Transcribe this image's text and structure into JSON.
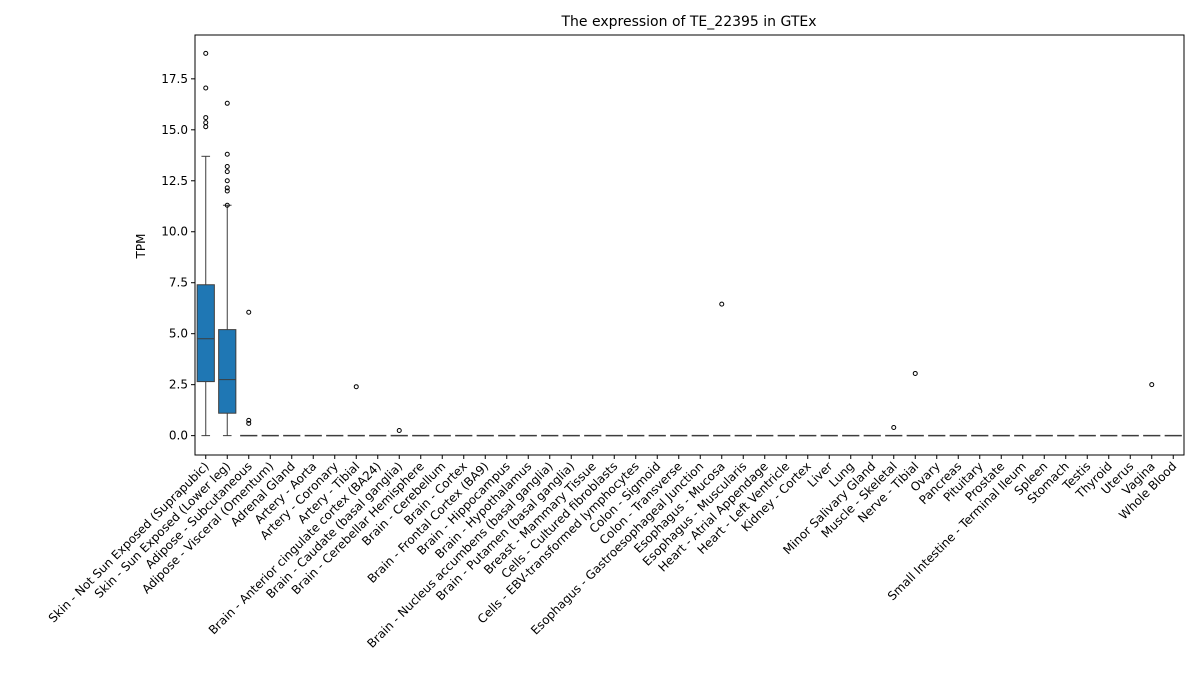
{
  "chart_data": {
    "type": "box",
    "title": "The expression of TE_22395 in GTEx",
    "ylabel": "TPM",
    "xlabel": "",
    "ylim": [
      -0.95,
      19.65
    ],
    "yticks": [
      0.0,
      2.5,
      5.0,
      7.5,
      10.0,
      12.5,
      15.0,
      17.5
    ],
    "ytick_labels": [
      "0.0",
      "2.5",
      "5.0",
      "7.5",
      "10.0",
      "12.5",
      "15.0",
      "17.5"
    ],
    "grid": false,
    "box_color": "#1f77b4",
    "categories": [
      "Skin - Not Sun Exposed (Suprapubic)",
      "Skin - Sun Exposed (Lower leg)",
      "Adipose - Subcutaneous",
      "Adipose - Visceral (Omentum)",
      "Adrenal Gland",
      "Artery - Aorta",
      "Artery - Coronary",
      "Artery - Tibial",
      "Brain - Anterior cingulate cortex (BA24)",
      "Brain - Caudate (basal ganglia)",
      "Brain - Cerebellar Hemisphere",
      "Brain - Cerebellum",
      "Brain - Cortex",
      "Brain - Frontal Cortex (BA9)",
      "Brain - Hippocampus",
      "Brain - Hypothalamus",
      "Brain - Nucleus accumbens (basal ganglia)",
      "Brain - Putamen (basal ganglia)",
      "Breast - Mammary Tissue",
      "Cells - Cultured fibroblasts",
      "Cells - EBV-transformed lymphocytes",
      "Colon - Sigmoid",
      "Colon - Transverse",
      "Esophagus - Gastroesophageal Junction",
      "Esophagus - Mucosa",
      "Esophagus - Muscularis",
      "Heart - Atrial Appendage",
      "Heart - Left Ventricle",
      "Kidney - Cortex",
      "Liver",
      "Lung",
      "Minor Salivary Gland",
      "Muscle - Skeletal",
      "Nerve - Tibial",
      "Ovary",
      "Pancreas",
      "Pituitary",
      "Prostate",
      "Small Intestine - Terminal Ileum",
      "Spleen",
      "Stomach",
      "Testis",
      "Thyroid",
      "Uterus",
      "Vagina",
      "Whole Blood"
    ],
    "boxes": [
      {
        "min": 0.0,
        "q1": 2.65,
        "median": 4.75,
        "q3": 7.4,
        "max": 13.7,
        "outliers": [
          18.75,
          17.05,
          15.6,
          15.35,
          15.15
        ]
      },
      {
        "min": 0.0,
        "q1": 1.1,
        "median": 2.75,
        "q3": 5.2,
        "max": 11.3,
        "outliers": [
          16.3,
          13.8,
          13.2,
          12.95,
          12.5,
          12.15,
          12.0,
          11.3
        ]
      },
      {
        "min": 0.0,
        "q1": 0.0,
        "median": 0.0,
        "q3": 0.0,
        "max": 0.0,
        "outliers": [
          6.05,
          0.75,
          0.6
        ]
      },
      {
        "min": 0.0,
        "q1": 0.0,
        "median": 0.0,
        "q3": 0.0,
        "max": 0.0,
        "outliers": []
      },
      {
        "min": 0.0,
        "q1": 0.0,
        "median": 0.0,
        "q3": 0.0,
        "max": 0.0,
        "outliers": []
      },
      {
        "min": 0.0,
        "q1": 0.0,
        "median": 0.0,
        "q3": 0.0,
        "max": 0.0,
        "outliers": []
      },
      {
        "min": 0.0,
        "q1": 0.0,
        "median": 0.0,
        "q3": 0.0,
        "max": 0.0,
        "outliers": []
      },
      {
        "min": 0.0,
        "q1": 0.0,
        "median": 0.0,
        "q3": 0.0,
        "max": 0.0,
        "outliers": [
          2.4
        ]
      },
      {
        "min": 0.0,
        "q1": 0.0,
        "median": 0.0,
        "q3": 0.0,
        "max": 0.0,
        "outliers": []
      },
      {
        "min": 0.0,
        "q1": 0.0,
        "median": 0.0,
        "q3": 0.0,
        "max": 0.0,
        "outliers": [
          0.25
        ]
      },
      {
        "min": 0.0,
        "q1": 0.0,
        "median": 0.0,
        "q3": 0.0,
        "max": 0.0,
        "outliers": []
      },
      {
        "min": 0.0,
        "q1": 0.0,
        "median": 0.0,
        "q3": 0.0,
        "max": 0.0,
        "outliers": []
      },
      {
        "min": 0.0,
        "q1": 0.0,
        "median": 0.0,
        "q3": 0.0,
        "max": 0.0,
        "outliers": []
      },
      {
        "min": 0.0,
        "q1": 0.0,
        "median": 0.0,
        "q3": 0.0,
        "max": 0.0,
        "outliers": []
      },
      {
        "min": 0.0,
        "q1": 0.0,
        "median": 0.0,
        "q3": 0.0,
        "max": 0.0,
        "outliers": []
      },
      {
        "min": 0.0,
        "q1": 0.0,
        "median": 0.0,
        "q3": 0.0,
        "max": 0.0,
        "outliers": []
      },
      {
        "min": 0.0,
        "q1": 0.0,
        "median": 0.0,
        "q3": 0.0,
        "max": 0.0,
        "outliers": []
      },
      {
        "min": 0.0,
        "q1": 0.0,
        "median": 0.0,
        "q3": 0.0,
        "max": 0.0,
        "outliers": []
      },
      {
        "min": 0.0,
        "q1": 0.0,
        "median": 0.0,
        "q3": 0.0,
        "max": 0.0,
        "outliers": []
      },
      {
        "min": 0.0,
        "q1": 0.0,
        "median": 0.0,
        "q3": 0.0,
        "max": 0.0,
        "outliers": []
      },
      {
        "min": 0.0,
        "q1": 0.0,
        "median": 0.0,
        "q3": 0.0,
        "max": 0.0,
        "outliers": []
      },
      {
        "min": 0.0,
        "q1": 0.0,
        "median": 0.0,
        "q3": 0.0,
        "max": 0.0,
        "outliers": []
      },
      {
        "min": 0.0,
        "q1": 0.0,
        "median": 0.0,
        "q3": 0.0,
        "max": 0.0,
        "outliers": []
      },
      {
        "min": 0.0,
        "q1": 0.0,
        "median": 0.0,
        "q3": 0.0,
        "max": 0.0,
        "outliers": []
      },
      {
        "min": 0.0,
        "q1": 0.0,
        "median": 0.0,
        "q3": 0.0,
        "max": 0.0,
        "outliers": [
          6.45
        ]
      },
      {
        "min": 0.0,
        "q1": 0.0,
        "median": 0.0,
        "q3": 0.0,
        "max": 0.0,
        "outliers": []
      },
      {
        "min": 0.0,
        "q1": 0.0,
        "median": 0.0,
        "q3": 0.0,
        "max": 0.0,
        "outliers": []
      },
      {
        "min": 0.0,
        "q1": 0.0,
        "median": 0.0,
        "q3": 0.0,
        "max": 0.0,
        "outliers": []
      },
      {
        "min": 0.0,
        "q1": 0.0,
        "median": 0.0,
        "q3": 0.0,
        "max": 0.0,
        "outliers": []
      },
      {
        "min": 0.0,
        "q1": 0.0,
        "median": 0.0,
        "q3": 0.0,
        "max": 0.0,
        "outliers": []
      },
      {
        "min": 0.0,
        "q1": 0.0,
        "median": 0.0,
        "q3": 0.0,
        "max": 0.0,
        "outliers": []
      },
      {
        "min": 0.0,
        "q1": 0.0,
        "median": 0.0,
        "q3": 0.0,
        "max": 0.0,
        "outliers": []
      },
      {
        "min": 0.0,
        "q1": 0.0,
        "median": 0.0,
        "q3": 0.0,
        "max": 0.0,
        "outliers": [
          0.4
        ]
      },
      {
        "min": 0.0,
        "q1": 0.0,
        "median": 0.0,
        "q3": 0.0,
        "max": 0.0,
        "outliers": [
          3.05
        ]
      },
      {
        "min": 0.0,
        "q1": 0.0,
        "median": 0.0,
        "q3": 0.0,
        "max": 0.0,
        "outliers": []
      },
      {
        "min": 0.0,
        "q1": 0.0,
        "median": 0.0,
        "q3": 0.0,
        "max": 0.0,
        "outliers": []
      },
      {
        "min": 0.0,
        "q1": 0.0,
        "median": 0.0,
        "q3": 0.0,
        "max": 0.0,
        "outliers": []
      },
      {
        "min": 0.0,
        "q1": 0.0,
        "median": 0.0,
        "q3": 0.0,
        "max": 0.0,
        "outliers": []
      },
      {
        "min": 0.0,
        "q1": 0.0,
        "median": 0.0,
        "q3": 0.0,
        "max": 0.0,
        "outliers": []
      },
      {
        "min": 0.0,
        "q1": 0.0,
        "median": 0.0,
        "q3": 0.0,
        "max": 0.0,
        "outliers": []
      },
      {
        "min": 0.0,
        "q1": 0.0,
        "median": 0.0,
        "q3": 0.0,
        "max": 0.0,
        "outliers": []
      },
      {
        "min": 0.0,
        "q1": 0.0,
        "median": 0.0,
        "q3": 0.0,
        "max": 0.0,
        "outliers": []
      },
      {
        "min": 0.0,
        "q1": 0.0,
        "median": 0.0,
        "q3": 0.0,
        "max": 0.0,
        "outliers": []
      },
      {
        "min": 0.0,
        "q1": 0.0,
        "median": 0.0,
        "q3": 0.0,
        "max": 0.0,
        "outliers": []
      },
      {
        "min": 0.0,
        "q1": 0.0,
        "median": 0.0,
        "q3": 0.0,
        "max": 0.0,
        "outliers": [
          2.5
        ]
      },
      {
        "min": 0.0,
        "q1": 0.0,
        "median": 0.0,
        "q3": 0.0,
        "max": 0.0,
        "outliers": []
      }
    ]
  }
}
